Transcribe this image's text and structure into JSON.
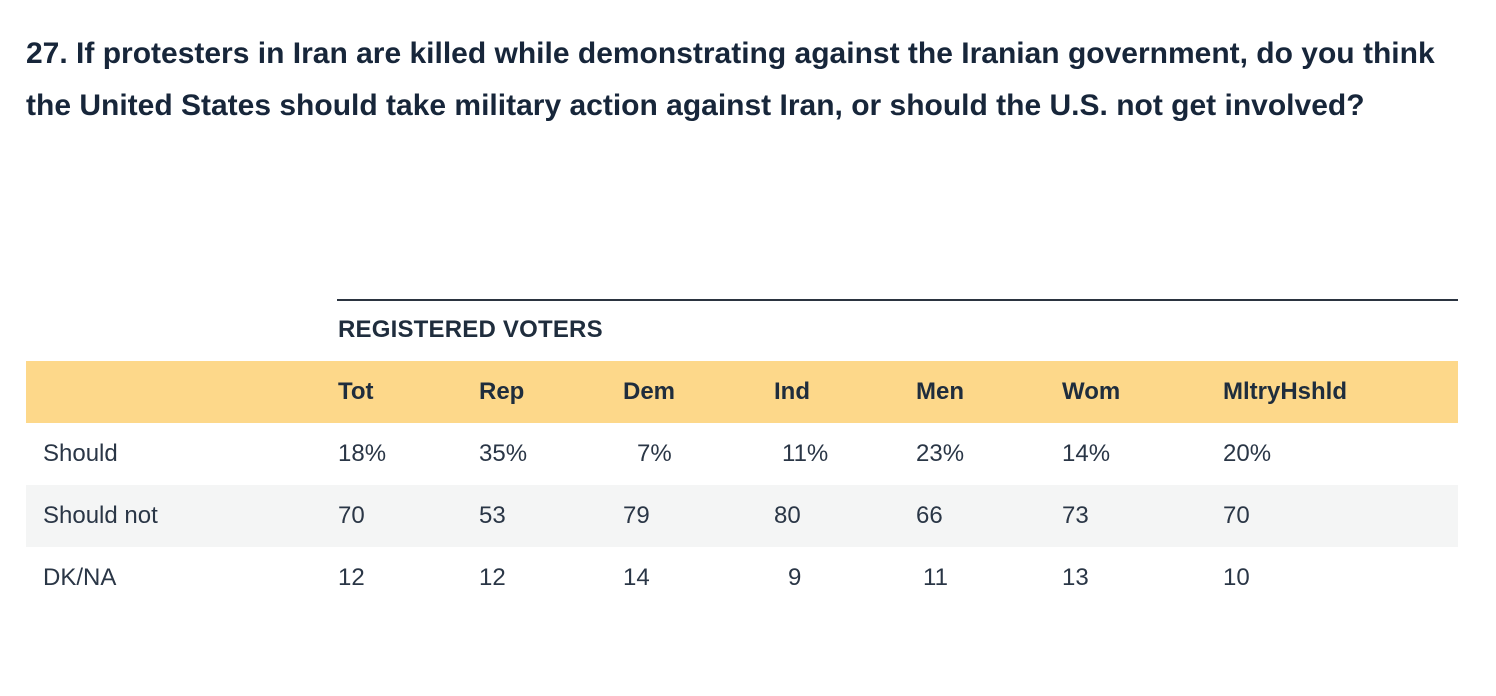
{
  "question": {
    "text": "27. If protesters in Iran are killed while demonstrating against the Iranian government, do you think the United States should take military action against Iran, or should the U.S. not get involved?"
  },
  "table": {
    "group_label": "REGISTERED VOTERS",
    "columns": [
      "Tot",
      "Rep",
      "Dem",
      "Ind",
      "Men",
      "Wom",
      "MltryHshld"
    ],
    "rows": [
      {
        "label": "Should",
        "values": [
          "18%",
          "35%",
          "7%",
          "11%",
          "23%",
          "14%",
          "20%"
        ]
      },
      {
        "label": "Should not",
        "values": [
          "70",
          "53",
          "79",
          "80",
          "66",
          "73",
          "70"
        ]
      },
      {
        "label": "DK/NA",
        "values": [
          "12",
          "12",
          "14",
          "9",
          "11",
          "13",
          "10"
        ]
      }
    ]
  },
  "colors": {
    "header_background": "#fdd88a",
    "shaded_row_background": "#f4f5f5",
    "text": "#17263a",
    "rule": "#2b3440"
  }
}
